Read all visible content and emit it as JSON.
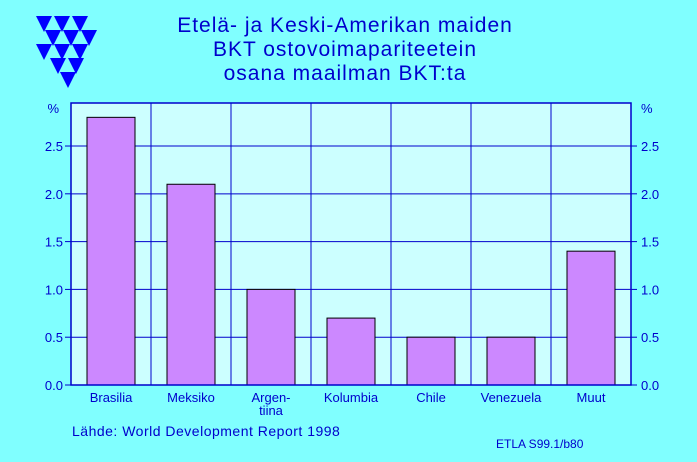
{
  "title": {
    "lines": [
      "Etelä- ja Keski-Amerikan maiden",
      "BKT ostovoimapariteetein",
      "osana maailman BKT:ta"
    ]
  },
  "logo": {
    "icon": "etla-triangles-logo"
  },
  "colors": {
    "background": "#80ffff",
    "plot_background": "#ccffff",
    "grid": "#0000cc",
    "bar": "#cc88ff",
    "text": "#0000cc"
  },
  "chart_data": {
    "type": "bar",
    "categories": [
      "Brasilia",
      "Meksiko",
      "Argen-\ntiina",
      "Kolumbia",
      "Chile",
      "Venezuela",
      "Muut"
    ],
    "values": [
      2.8,
      2.1,
      1.0,
      0.7,
      0.5,
      0.5,
      1.4
    ],
    "y_unit_label": "%",
    "yticks": [
      "0.0",
      "0.5",
      "1.0",
      "1.5",
      "2.0",
      "2.5"
    ],
    "ylim": [
      0,
      2.95
    ],
    "grid": true,
    "secondary_y_axis": true
  },
  "footer": {
    "source": "Lähde:  World Development Report 1998",
    "code": "ETLA S99.1/b80"
  }
}
